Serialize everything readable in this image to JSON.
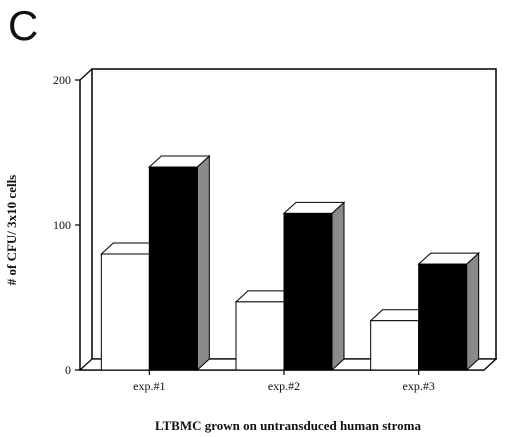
{
  "panel_label": "C",
  "chart_data": {
    "type": "bar",
    "categories": [
      "exp.#1",
      "exp.#2",
      "exp.#3"
    ],
    "series": [
      {
        "values": [
          80,
          47,
          34
        ],
        "color": "#ffffff"
      },
      {
        "values": [
          140,
          108,
          73
        ],
        "color": "#000000"
      }
    ],
    "xlabel": "LTBMC grown on untransduced human stroma",
    "ylabel": "# of CFU/ 3x10  cells",
    "ylim": [
      0,
      200
    ],
    "yticks": [
      0,
      100,
      200
    ],
    "grid": false,
    "style": "3d"
  }
}
